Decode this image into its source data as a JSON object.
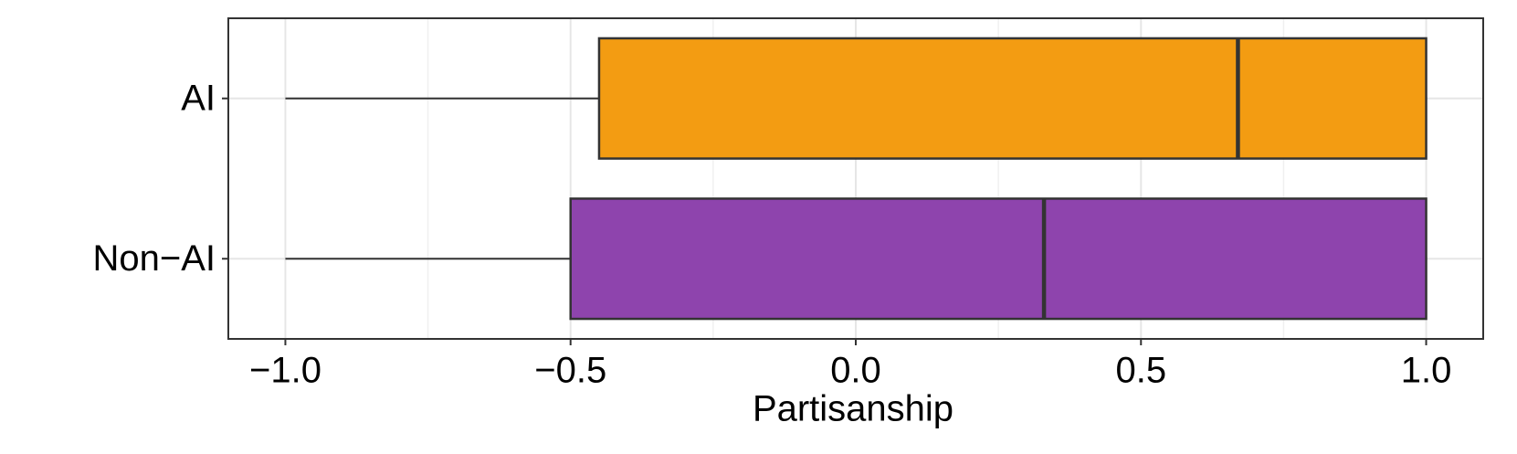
{
  "chart_data": {
    "type": "boxplot",
    "orientation": "horizontal",
    "x_label": "Partisanship",
    "categories": [
      "AI",
      "Non−AI"
    ],
    "colors": [
      "#F39C12",
      "#8E44AD"
    ],
    "boxes": [
      {
        "min": -1.0,
        "q1": -0.45,
        "median": 0.67,
        "q3": 1.0,
        "max": 1.0
      },
      {
        "min": -1.0,
        "q1": -0.5,
        "median": 0.33,
        "q3": 1.0,
        "max": 1.0
      }
    ],
    "xlim": [
      -1.1,
      1.1
    ],
    "xticks": [
      {
        "value": -1.0,
        "label": "−1.0"
      },
      {
        "value": -0.5,
        "label": "−0.5"
      },
      {
        "value": 0,
        "label": "0.0"
      },
      {
        "value": 0.5,
        "label": "0.5"
      },
      {
        "value": 1.0,
        "label": "1.0"
      }
    ],
    "xminorticks": [
      -0.75,
      -0.25,
      0.25,
      0.75
    ],
    "grid": true
  }
}
